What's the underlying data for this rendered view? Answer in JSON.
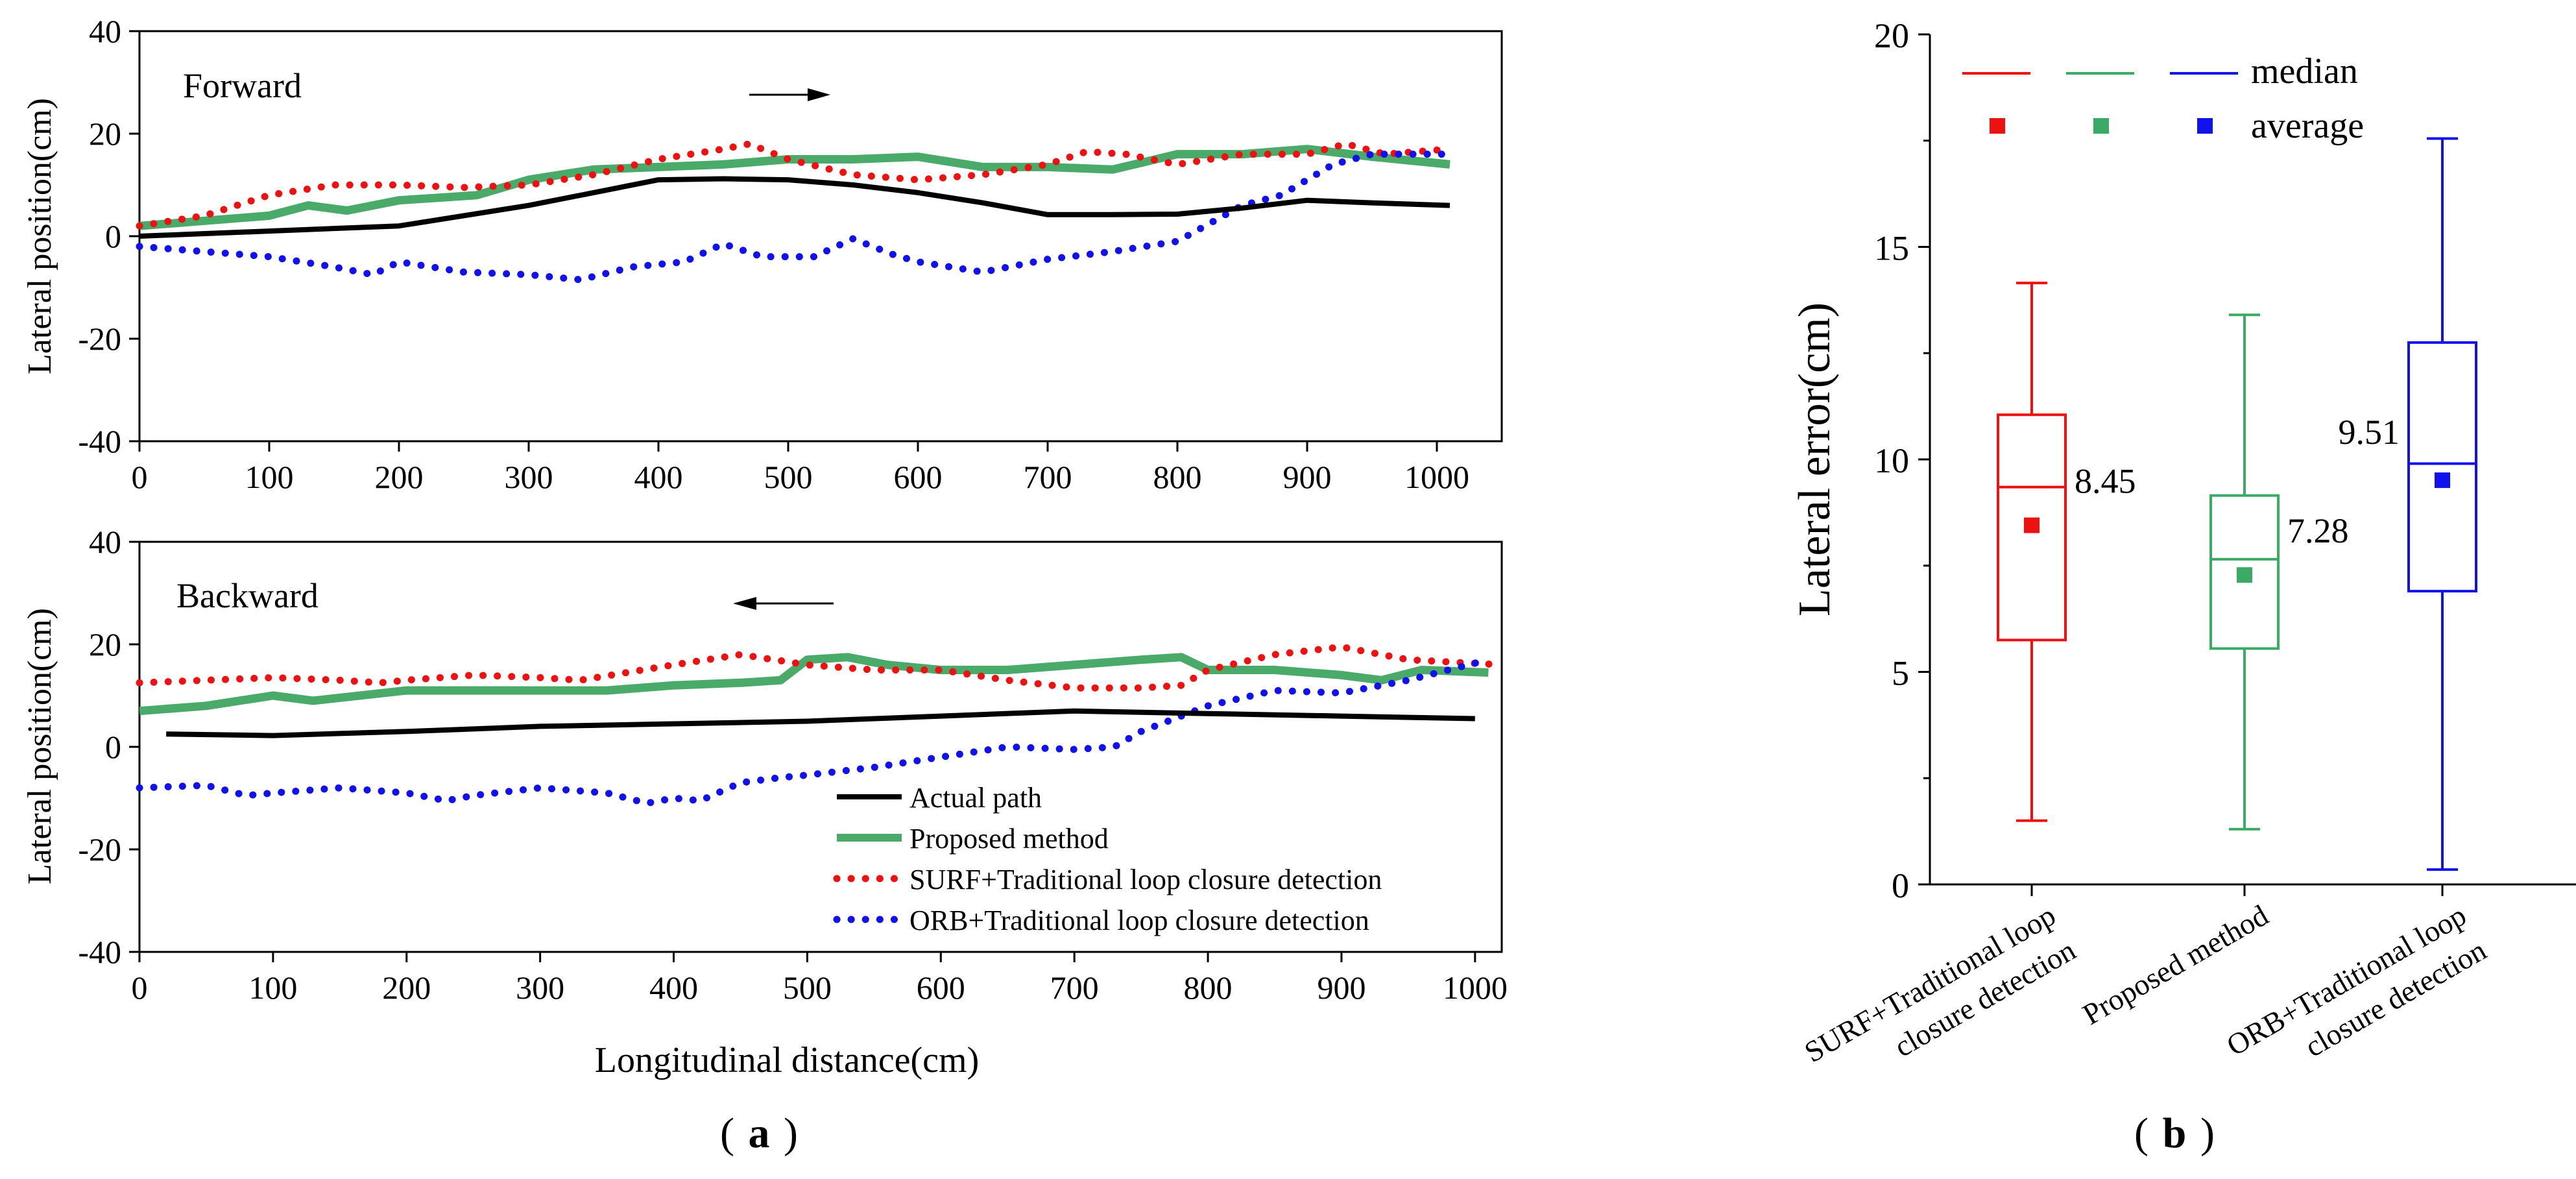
{
  "chart_data": [
    {
      "id": "forward",
      "type": "line",
      "title": "Forward",
      "xlabel": "",
      "ylabel": "Lateral position(cm)",
      "xlim": [
        0,
        1050
      ],
      "ylim": [
        -40,
        40
      ],
      "xticks": [
        0,
        100,
        200,
        300,
        400,
        500,
        600,
        700,
        800,
        900,
        1000
      ],
      "yticks": [
        -40,
        -20,
        0,
        20,
        40
      ],
      "arrow": "right",
      "series": [
        {
          "name": "Actual path",
          "color": "#000000",
          "style": "solid",
          "x": [
            0,
            100,
            200,
            300,
            350,
            400,
            450,
            500,
            550,
            600,
            650,
            700,
            750,
            800,
            850,
            900,
            950,
            1010
          ],
          "y": [
            0,
            1,
            2,
            6,
            8.5,
            11,
            11.2,
            11,
            10,
            8.5,
            6.5,
            4.2,
            4.2,
            4.3,
            5.5,
            7,
            6.5,
            6
          ]
        },
        {
          "name": "Proposed method",
          "color": "#4aaa6a",
          "style": "thick",
          "x": [
            0,
            50,
            100,
            130,
            160,
            200,
            230,
            260,
            300,
            350,
            400,
            450,
            500,
            550,
            600,
            650,
            700,
            750,
            800,
            850,
            900,
            950,
            1010
          ],
          "y": [
            2,
            3,
            4,
            6,
            5,
            7,
            7.5,
            8,
            11,
            13,
            13.5,
            14,
            15,
            15,
            15.5,
            13.5,
            13.5,
            13,
            16,
            16,
            17,
            15.5,
            14
          ]
        },
        {
          "name": "SURF+Traditional loop closure detection",
          "color": "#ee1111",
          "style": "dotted",
          "x": [
            0,
            50,
            100,
            150,
            200,
            250,
            300,
            350,
            400,
            450,
            470,
            500,
            550,
            600,
            650,
            700,
            730,
            760,
            800,
            850,
            900,
            930,
            960,
            1010
          ],
          "y": [
            2,
            4,
            8,
            10,
            10,
            9.5,
            10,
            12,
            15,
            17,
            18,
            15,
            12,
            11,
            12,
            14,
            16.5,
            16,
            14,
            16,
            16,
            18,
            16,
            17
          ]
        },
        {
          "name": "ORB+Traditional loop closure detection",
          "color": "#1111ee",
          "style": "dotted",
          "x": [
            0,
            50,
            100,
            150,
            180,
            200,
            250,
            300,
            340,
            380,
            420,
            450,
            480,
            520,
            550,
            580,
            600,
            650,
            700,
            750,
            800,
            850,
            880,
            920,
            950,
            1010
          ],
          "y": [
            -2,
            -3,
            -4,
            -6,
            -7.5,
            -5,
            -7,
            -7.5,
            -8.5,
            -6,
            -5,
            -1.5,
            -4,
            -4,
            -0.5,
            -3.5,
            -5,
            -7,
            -4.5,
            -3,
            -1,
            6,
            8,
            14,
            16,
            16
          ]
        }
      ]
    },
    {
      "id": "backward",
      "type": "line",
      "title": "Backward",
      "xlabel": "Longitudinal distance(cm)",
      "ylabel": "Lateral position(cm)",
      "xlim": [
        0,
        1020
      ],
      "ylim": [
        -40,
        40
      ],
      "xticks": [
        0,
        100,
        200,
        300,
        400,
        500,
        600,
        700,
        800,
        900,
        1000
      ],
      "yticks": [
        -40,
        -20,
        0,
        20,
        40
      ],
      "arrow": "left",
      "series": [
        {
          "name": "Actual path",
          "color": "#000000",
          "style": "solid",
          "x": [
            20,
            100,
            200,
            300,
            400,
            500,
            600,
            700,
            800,
            900,
            1000
          ],
          "y": [
            2.5,
            2.2,
            3,
            4,
            4.5,
            5,
            6,
            7,
            6.5,
            6,
            5.5
          ]
        },
        {
          "name": "Proposed method",
          "color": "#4aaa6a",
          "style": "thick",
          "x": [
            0,
            50,
            100,
            130,
            200,
            250,
            300,
            350,
            400,
            450,
            480,
            500,
            530,
            560,
            600,
            650,
            700,
            750,
            780,
            800,
            850,
            900,
            930,
            960,
            1010
          ],
          "y": [
            7,
            8,
            10,
            9,
            11,
            11,
            11,
            11,
            12,
            12.5,
            13,
            17,
            17.5,
            16,
            15,
            15,
            16,
            17,
            17.5,
            15,
            15,
            14,
            13,
            15,
            14.5
          ]
        },
        {
          "name": "SURF+Traditional loop closure detection",
          "color": "#ee1111",
          "style": "dotted",
          "x": [
            0,
            50,
            100,
            150,
            180,
            200,
            250,
            300,
            330,
            400,
            450,
            500,
            550,
            600,
            650,
            700,
            750,
            780,
            800,
            850,
            900,
            950,
            1020
          ],
          "y": [
            12.5,
            13,
            13.5,
            13,
            12.5,
            13,
            14,
            13.5,
            13,
            16,
            18,
            16,
            15,
            15,
            13,
            11.5,
            11.5,
            12,
            15,
            18,
            19.5,
            17,
            16
          ]
        },
        {
          "name": "ORB+Traditional loop closure detection",
          "color": "#1111ee",
          "style": "dotted",
          "x": [
            0,
            50,
            80,
            100,
            150,
            200,
            230,
            250,
            300,
            350,
            380,
            400,
            420,
            450,
            480,
            500,
            550,
            600,
            650,
            700,
            730,
            750,
            780,
            800,
            850,
            900,
            950,
            1010
          ],
          "y": [
            -8,
            -7.5,
            -9.5,
            -9,
            -8,
            -9,
            -10.5,
            -9.5,
            -8,
            -9,
            -11,
            -10,
            -10.5,
            -7,
            -6,
            -5.5,
            -4,
            -2,
            0,
            -0.5,
            0,
            3,
            6,
            8,
            11,
            10.5,
            13,
            17
          ]
        }
      ],
      "legend": {
        "position": "bottom-right",
        "entries": [
          "Actual path",
          "Proposed method",
          "SURF+Traditional loop closure detection",
          "ORB+Traditional loop closure detection"
        ]
      }
    },
    {
      "id": "boxplot",
      "type": "box",
      "ylabel": "Lateral error(cm)",
      "ylim": [
        0,
        20
      ],
      "yticks": [
        0,
        5,
        10,
        15,
        20
      ],
      "categories": [
        "SURF+Traditional loop closure detection",
        "Proposed method",
        "ORB+Traditional loop closure detection"
      ],
      "category_lines": [
        [
          "SURF+Traditional loop",
          "closure detection"
        ],
        [
          "Proposed method"
        ],
        [
          "ORB+Traditional loop",
          "closure detection"
        ]
      ],
      "boxes": [
        {
          "color": "#ee1111",
          "min": 1.5,
          "q1": 5.75,
          "median": 9.35,
          "q3": 11.05,
          "max": 14.15,
          "average": 8.45,
          "label": "8.45"
        },
        {
          "color": "#3aaa66",
          "min": 1.3,
          "q1": 5.55,
          "median": 7.65,
          "q3": 9.15,
          "max": 13.4,
          "average": 7.28,
          "label": "7.28"
        },
        {
          "color": "#1111ee",
          "min": 0.35,
          "q1": 6.9,
          "median": 9.9,
          "q3": 12.75,
          "max": 17.55,
          "average": 9.51,
          "label": "9.51"
        }
      ],
      "legend": {
        "median_label": "median",
        "average_label": "average",
        "position": "top"
      }
    }
  ],
  "captions": {
    "a": "a",
    "b": "b"
  }
}
